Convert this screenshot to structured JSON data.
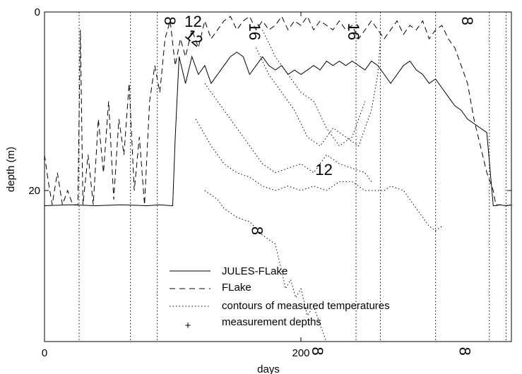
{
  "chart_data": {
    "type": "line",
    "title": "",
    "xlabel": "days",
    "ylabel": "depth (m)",
    "xlim": [
      0,
      365
    ],
    "ylim": [
      0,
      40
    ],
    "y_inverted": true,
    "x_ticks": [
      0,
      200
    ],
    "x_tick_labels": [
      "0",
      "200"
    ],
    "y_ticks": [
      0,
      20
    ],
    "y_tick_labels": [
      "0",
      "20"
    ],
    "grid": false,
    "legend_position": "bottom-center",
    "series": [
      {
        "name": "JULES-FLake",
        "style": "solid",
        "x": [
          0,
          20,
          40,
          60,
          80,
          90,
          99,
          100,
          102,
          105,
          110,
          115,
          120,
          125,
          130,
          135,
          140,
          145,
          150,
          155,
          160,
          165,
          170,
          175,
          180,
          185,
          190,
          195,
          200,
          205,
          210,
          215,
          220,
          225,
          230,
          235,
          240,
          245,
          250,
          255,
          260,
          265,
          270,
          275,
          280,
          285,
          290,
          295,
          300,
          305,
          310,
          315,
          320,
          325,
          330,
          335,
          340,
          345,
          350,
          352,
          355,
          360,
          365
        ],
        "y": [
          21.7,
          21.6,
          21.7,
          21.6,
          21.7,
          21.6,
          21.7,
          21.7,
          14,
          5,
          8,
          5,
          7,
          6,
          8,
          7,
          6,
          5,
          4.5,
          5,
          7,
          6,
          5,
          6,
          6.5,
          6,
          7,
          6.5,
          7,
          6.5,
          6,
          6.5,
          5.5,
          6,
          5.5,
          6,
          5.5,
          6,
          6.5,
          5.5,
          6,
          7,
          8,
          7,
          6,
          5.5,
          6.5,
          7,
          8,
          7.5,
          8.5,
          9.5,
          10.5,
          11,
          12,
          12.5,
          13,
          13.5,
          21.7,
          21.7,
          21.6,
          21.7,
          21.6
        ]
      },
      {
        "name": "FLake",
        "style": "dashed",
        "x": [
          0,
          3,
          6,
          10,
          14,
          18,
          22,
          26,
          28,
          30,
          34,
          38,
          42,
          46,
          50,
          54,
          58,
          62,
          66,
          70,
          74,
          78,
          82,
          86,
          90,
          94,
          98,
          102,
          106,
          110,
          115,
          120,
          125,
          130,
          135,
          140,
          145,
          150,
          155,
          160,
          165,
          170,
          175,
          180,
          185,
          190,
          195,
          200,
          205,
          210,
          215,
          220,
          225,
          230,
          235,
          240,
          245,
          250,
          255,
          260,
          265,
          270,
          275,
          280,
          285,
          290,
          295,
          300,
          305,
          310,
          315,
          320,
          325,
          330,
          335,
          340,
          345,
          350,
          352,
          355,
          360,
          365
        ],
        "y": [
          16,
          19,
          21.6,
          18,
          21.6,
          20,
          21.6,
          21.6,
          2,
          21.6,
          16,
          21.6,
          12,
          18,
          10,
          21,
          12,
          16,
          8,
          20,
          14,
          21.6,
          10,
          6,
          9,
          3,
          1,
          6,
          3,
          5,
          2,
          4,
          1,
          3,
          2,
          1,
          0.5,
          2,
          1,
          0.5,
          2,
          1,
          2,
          1.5,
          0.5,
          2,
          1,
          1.5,
          0.5,
          2,
          1,
          1.5,
          2,
          1,
          2,
          1.5,
          3,
          2,
          1,
          2,
          3,
          2,
          1,
          2.5,
          1.5,
          2,
          1,
          3,
          2,
          1.5,
          3,
          4,
          6,
          8,
          12,
          15,
          18,
          20,
          21.6,
          21.6,
          21.7,
          21.6
        ]
      },
      {
        "name": "contours of measured temperatures",
        "style": "dotted",
        "contours": [
          {
            "label": "8",
            "x": [
              125,
              135,
              140,
              150,
              160,
              170,
              180,
              185,
              188,
              192,
              196,
              200,
              205,
              210,
              215,
              220,
              224
            ],
            "y": [
              20,
              21,
              22,
              23,
              23.5,
              25,
              26,
              29,
              31,
              30,
              32,
              31,
              34,
              33,
              35,
              37,
              39
            ]
          },
          {
            "label": "12",
            "x": [
              118,
              130,
              140,
              150,
              160,
              170,
              180,
              190,
              200,
              210,
              220,
              230,
              240,
              250,
              258,
              265,
              270,
              280,
              290,
              300,
              305,
              310
            ],
            "y": [
              12,
              15,
              17,
              18,
              18.5,
              19.5,
              20,
              19.5,
              20,
              19.5,
              20,
              19,
              19,
              20,
              20,
              20,
              19.5,
              20,
              22,
              24,
              24.5,
              24
            ]
          },
          {
            "label": "12",
            "x": [
              125,
              140,
              150,
              160,
              170,
              180,
              190,
              200,
              210,
              220,
              230,
              240,
              250,
              255
            ],
            "y": [
              8,
              11,
              13,
              15,
              17,
              18,
              17.5,
              17,
              18,
              16,
              17,
              17.5,
              18,
              19
            ]
          },
          {
            "label": "16",
            "x": [
              165,
              175,
              185,
              195,
              205,
              215,
              225,
              235,
              245,
              255,
              260,
              262
            ],
            "y": [
              4,
              7,
              9,
              11,
              14,
              15,
              13,
              14,
              15,
              11,
              7,
              3
            ]
          },
          {
            "label": "16",
            "x": [
              170,
              180,
              190,
              200,
              210,
              220,
              230,
              240,
              250
            ],
            "y": [
              2,
              5,
              7,
              9,
              10,
              13,
              15,
              14,
              10
            ]
          }
        ],
        "vertical_lines_x": [
          27,
          67,
          88,
          243,
          262,
          305,
          347,
          360
        ]
      },
      {
        "name": "measurement depths",
        "style": "marker-plus",
        "x": [],
        "y": []
      }
    ],
    "contour_labels": [
      {
        "text": "8",
        "x": 97,
        "y": 1.0,
        "rotate": 90
      },
      {
        "text": "12",
        "x": 116,
        "y": 1.2,
        "rotate": 0
      },
      {
        "text": "12",
        "x": 116,
        "y": 3.0,
        "rotate": 40
      },
      {
        "text": "16",
        "x": 163,
        "y": 2.2,
        "rotate": 90
      },
      {
        "text": "16",
        "x": 240,
        "y": 2.2,
        "rotate": 90
      },
      {
        "text": "12",
        "x": 218,
        "y": 17.8,
        "rotate": 0
      },
      {
        "text": "8",
        "x": 165,
        "y": 24.5,
        "rotate": 90
      },
      {
        "text": "8",
        "x": 212,
        "y": 38.0,
        "rotate": 90
      },
      {
        "text": "8",
        "x": 329,
        "y": 1.0,
        "rotate": 90
      },
      {
        "text": "8",
        "x": 327,
        "y": 38.0,
        "rotate": 90
      }
    ]
  }
}
